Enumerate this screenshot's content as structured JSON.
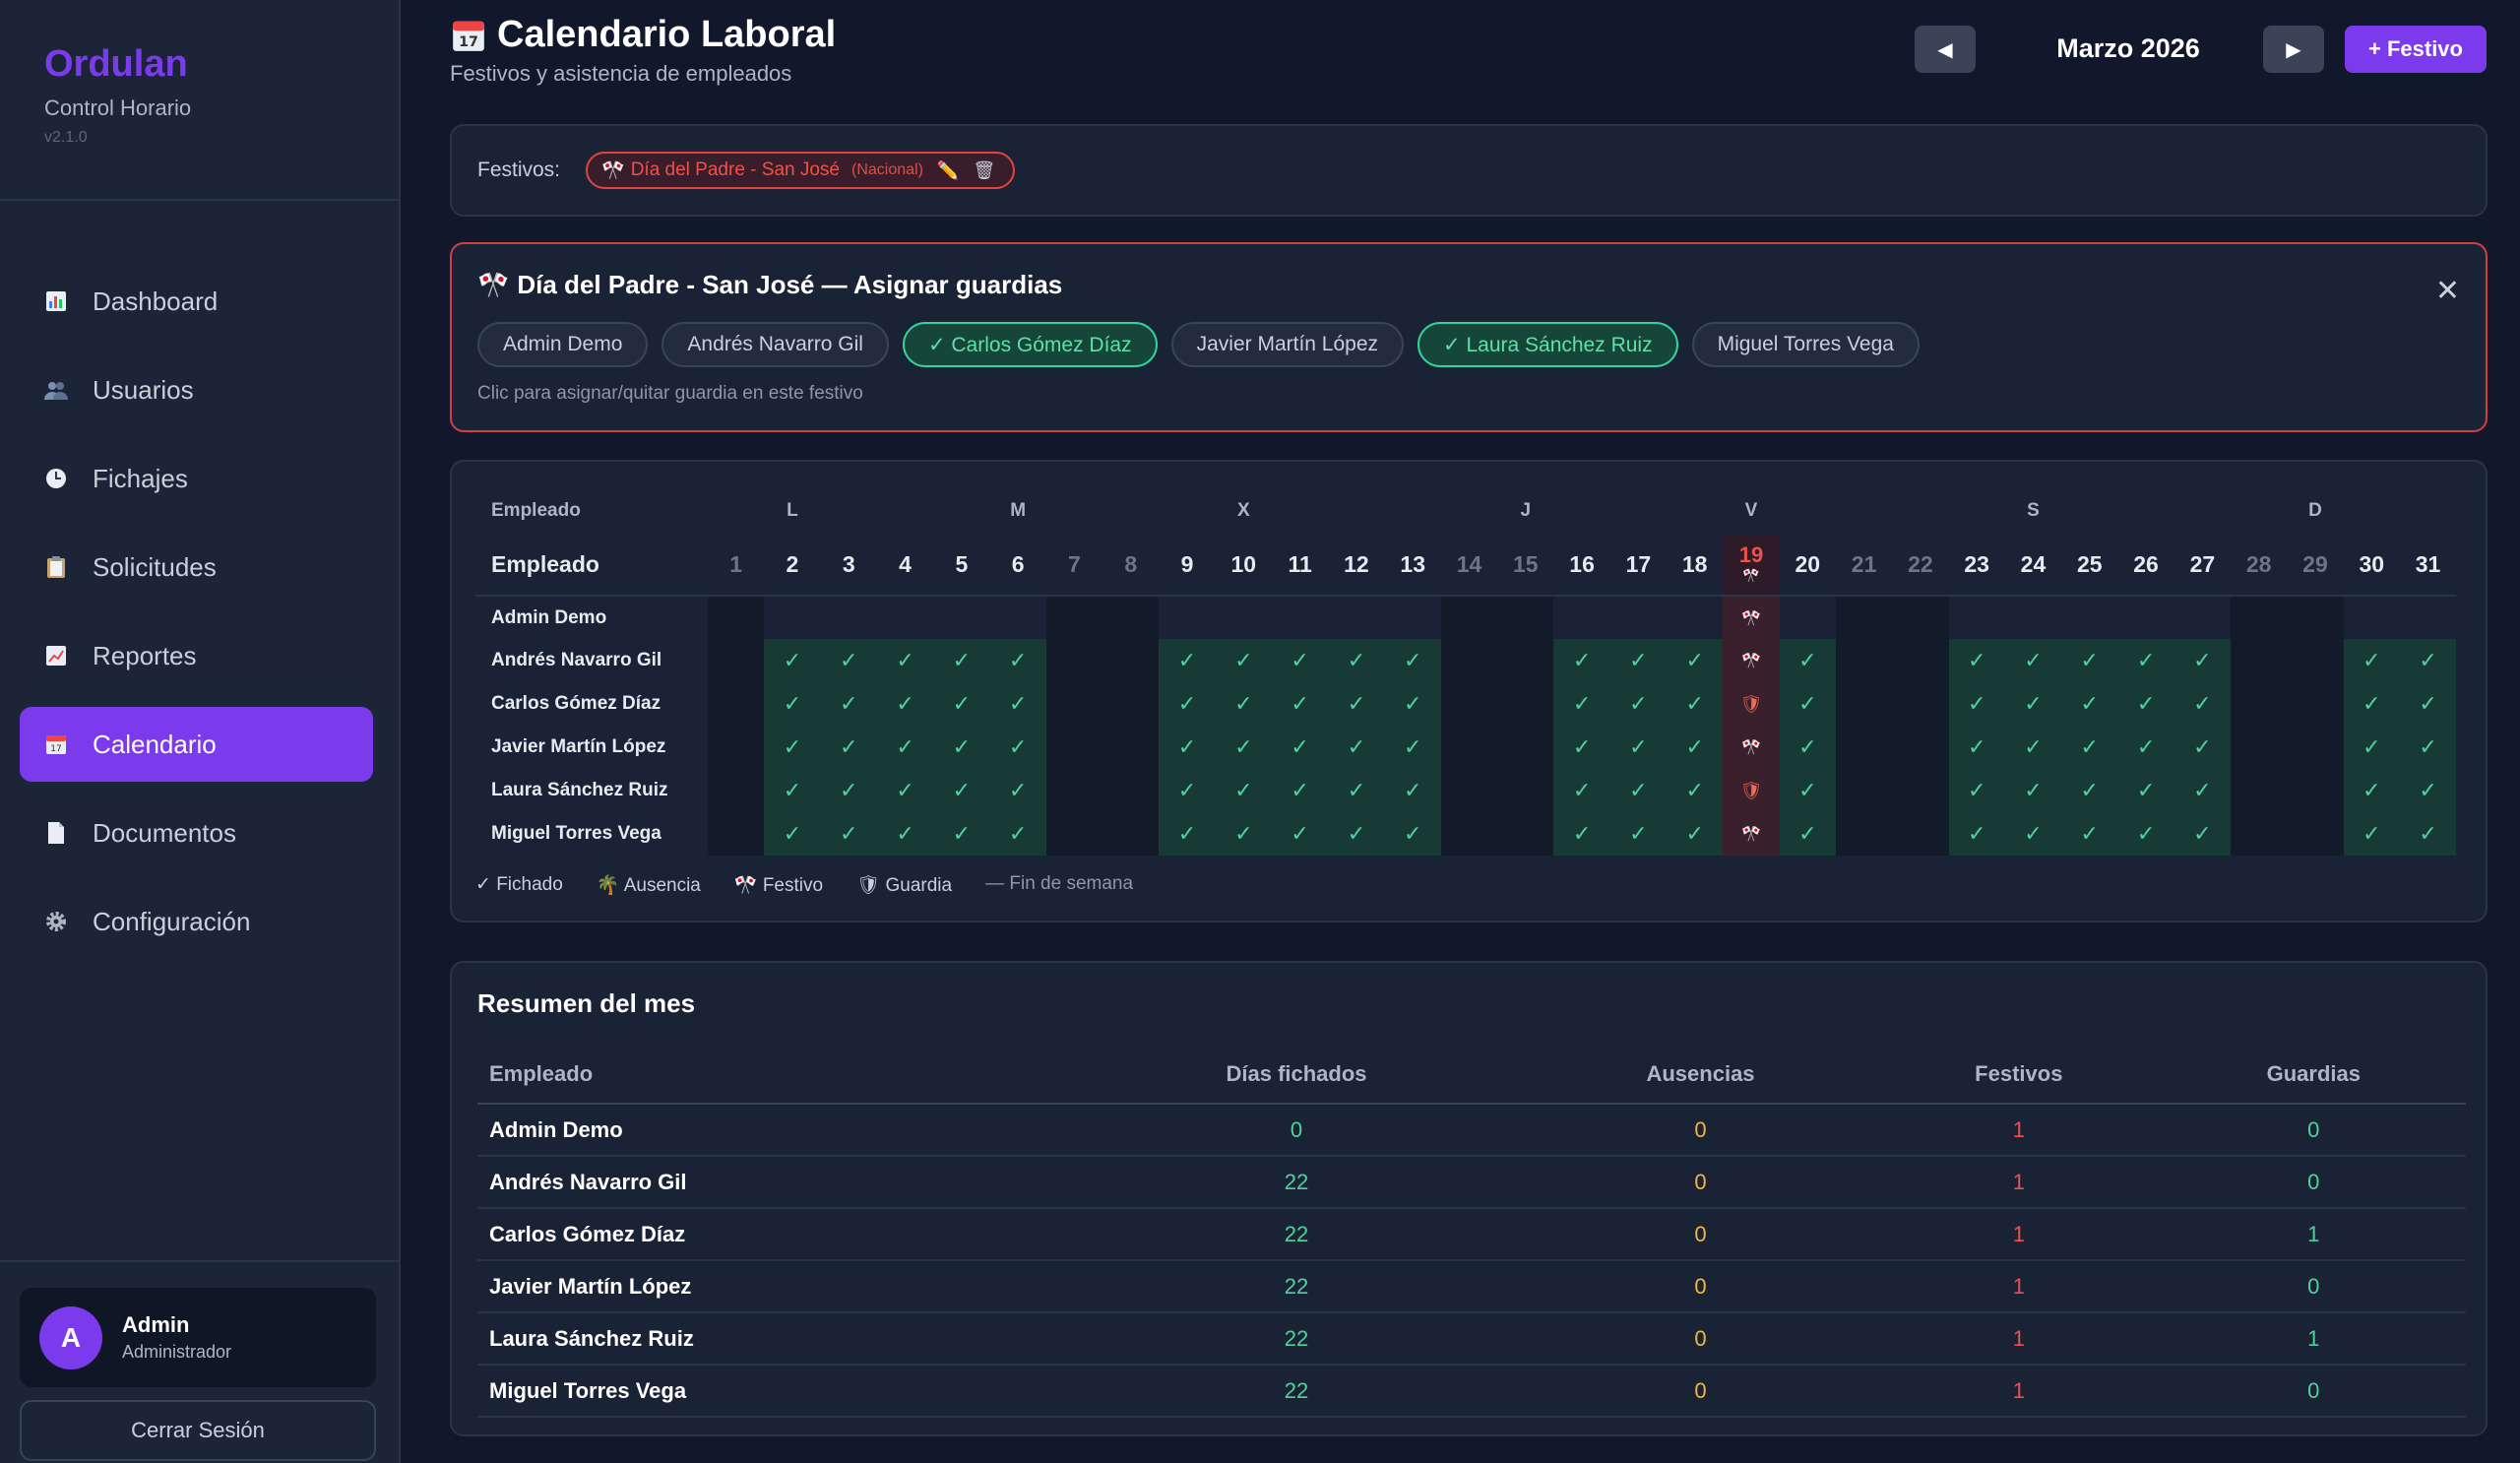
{
  "sidebar": {
    "brand": "Ordulan",
    "subtitle": "Control Horario",
    "version": "v2.1.0",
    "items": [
      {
        "label": "Dashboard",
        "icon": "bar-chart-icon",
        "active": false
      },
      {
        "label": "Usuarios",
        "icon": "users-icon",
        "active": false
      },
      {
        "label": "Fichajes",
        "icon": "clock-icon",
        "active": false
      },
      {
        "label": "Solicitudes",
        "icon": "clipboard-icon",
        "active": false
      },
      {
        "label": "Reportes",
        "icon": "trend-chart-icon",
        "active": false
      },
      {
        "label": "Calendario",
        "icon": "calendar-icon",
        "active": true
      },
      {
        "label": "Documentos",
        "icon": "document-icon",
        "active": false
      },
      {
        "label": "Configuración",
        "icon": "gear-icon",
        "active": false
      }
    ],
    "user": {
      "initial": "A",
      "name": "Admin",
      "role": "Administrador"
    },
    "logout": "Cerrar Sesión"
  },
  "header": {
    "title": "Calendario Laboral",
    "subtitle": "Festivos y asistencia de empleados",
    "month": "Marzo 2026",
    "prev": "◀",
    "next": "▶",
    "add_festivo": "+ Festivo"
  },
  "festivos": {
    "label": "Festivos:",
    "chip_name": "Día del Padre - San José",
    "chip_type": "(Nacional)"
  },
  "assign": {
    "title": "Día del Padre - San José — Asignar guardias",
    "hint": "Clic para asignar/quitar guardia en este festivo",
    "employees": [
      {
        "label": "Admin Demo",
        "on": false
      },
      {
        "label": "Andrés Navarro Gil",
        "on": false
      },
      {
        "label": "✓ Carlos Gómez Díaz",
        "on": true
      },
      {
        "label": "Javier Martín López",
        "on": false
      },
      {
        "label": "✓ Laura Sánchez Ruiz",
        "on": true
      },
      {
        "label": "Miguel Torres Vega",
        "on": false
      }
    ]
  },
  "calendar": {
    "col_header_top": "Empleado",
    "col_header": "Empleado",
    "weekday_labels": [
      "L",
      "M",
      "X",
      "J",
      "V",
      "S",
      "D"
    ],
    "days": [
      1,
      2,
      3,
      4,
      5,
      6,
      7,
      8,
      9,
      10,
      11,
      12,
      13,
      14,
      15,
      16,
      17,
      18,
      19,
      20,
      21,
      22,
      23,
      24,
      25,
      26,
      27,
      28,
      29,
      30,
      31
    ],
    "weekend_days": [
      1,
      7,
      8,
      14,
      15,
      21,
      22,
      28,
      29
    ],
    "holiday_day": 19,
    "rows": [
      {
        "name": "Admin Demo",
        "fichado": false,
        "guardia": false
      },
      {
        "name": "Andrés Navarro Gil",
        "fichado": true,
        "guardia": false
      },
      {
        "name": "Carlos Gómez Díaz",
        "fichado": true,
        "guardia": true
      },
      {
        "name": "Javier Martín López",
        "fichado": true,
        "guardia": false
      },
      {
        "name": "Laura Sánchez Ruiz",
        "fichado": true,
        "guardia": true
      },
      {
        "name": "Miguel Torres Vega",
        "fichado": true,
        "guardia": false
      }
    ],
    "legend": {
      "fichado": "✓ Fichado",
      "ausencia": "Ausencia",
      "festivo": "Festivo",
      "guardia": "Guardia",
      "fin": "— Fin de semana"
    }
  },
  "summary": {
    "title": "Resumen del mes",
    "headers": [
      "Empleado",
      "Días fichados",
      "Ausencias",
      "Festivos",
      "Guardias"
    ],
    "rows": [
      [
        "Admin Demo",
        "0",
        "0",
        "1",
        "0"
      ],
      [
        "Andrés Navarro Gil",
        "22",
        "0",
        "1",
        "0"
      ],
      [
        "Carlos Gómez Díaz",
        "22",
        "0",
        "1",
        "1"
      ],
      [
        "Javier Martín López",
        "22",
        "0",
        "1",
        "0"
      ],
      [
        "Laura Sánchez Ruiz",
        "22",
        "0",
        "1",
        "1"
      ],
      [
        "Miguel Torres Vega",
        "22",
        "0",
        "1",
        "0"
      ]
    ]
  },
  "colors": {
    "accent": "#7c3aed",
    "holiday": "#f0504a",
    "check": "#4fd39b",
    "absence": "#f4b73a"
  }
}
